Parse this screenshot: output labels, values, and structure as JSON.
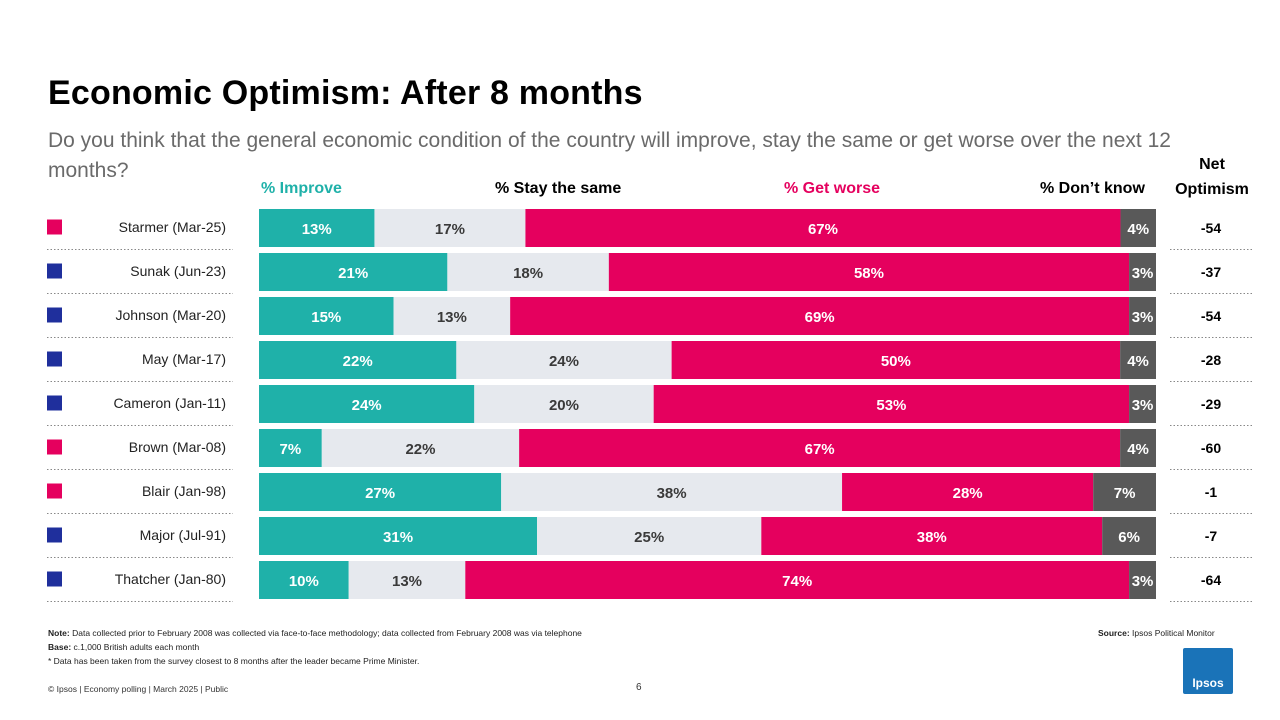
{
  "title": "Economic Optimism: After 8 months",
  "subtitle": "Do you think that the general economic condition of the country will improve, stay the same or get worse over the next 12 months?",
  "net_header": "Net Optimism",
  "colors": {
    "improve": "#1fb1a9",
    "same": "#e6e9ee",
    "worse": "#e5005e",
    "dontknow": "#595959",
    "conservative": "#1f2f9c",
    "labour": "#e5005e"
  },
  "chart_data": {
    "type": "bar",
    "stacked": true,
    "orientation": "horizontal",
    "series_names": [
      "% Improve",
      "% Stay the same",
      "% Get worse",
      "% Don’t know"
    ],
    "categories": [
      "Starmer (Mar-25)",
      "Sunak (Jun-23)",
      "Johnson (Mar-20)",
      "May (Mar-17)",
      "Cameron (Jan-11)",
      "Brown (Mar-08)",
      "Blair (Jan-98)",
      "Major (Jul-91)",
      "Thatcher (Jan-80)"
    ],
    "party": [
      "labour",
      "conservative",
      "conservative",
      "conservative",
      "conservative",
      "labour",
      "labour",
      "conservative",
      "conservative"
    ],
    "series": [
      {
        "name": "% Improve",
        "values": [
          13,
          21,
          15,
          22,
          24,
          7,
          27,
          31,
          10
        ]
      },
      {
        "name": "% Stay the same",
        "values": [
          17,
          18,
          13,
          24,
          20,
          22,
          38,
          25,
          13
        ]
      },
      {
        "name": "% Get worse",
        "values": [
          67,
          58,
          69,
          50,
          53,
          67,
          28,
          38,
          74
        ]
      },
      {
        "name": "% Don’t know",
        "values": [
          4,
          3,
          3,
          4,
          3,
          4,
          7,
          6,
          3
        ]
      }
    ],
    "net_optimism": [
      "-54",
      "-37",
      "-54",
      "-28",
      "-29",
      "-60",
      "-1",
      "-7",
      "-64"
    ]
  },
  "notes": {
    "note_label": "Note:",
    "note_text": "Data collected prior to February 2008 was collected via face-to-face methodology; data collected from February 2008 was via telephone",
    "base_label": "Base:",
    "base_text": "c.1,000 British adults each month",
    "footnote": "* Data has been taken from the survey closest to 8 months after the leader became Prime Minister.",
    "source_label": "Source:",
    "source_text": "Ipsos Political Monitor"
  },
  "footer": "© Ipsos | Economy polling | March 2025 | Public",
  "page_number": "6",
  "logo_text": "Ipsos"
}
